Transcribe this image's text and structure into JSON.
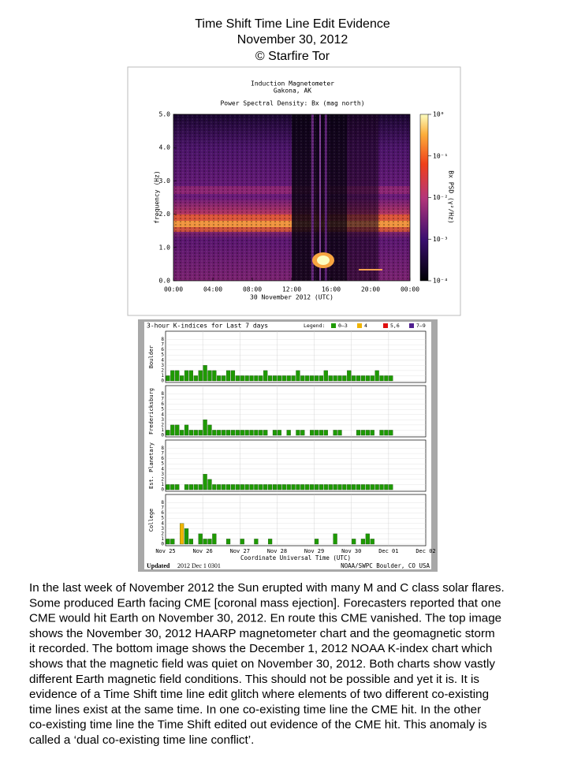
{
  "header": {
    "title": "Time Shift Time Line Edit Evidence",
    "date": "November 30, 2012",
    "credit": "© Starfire Tor"
  },
  "spectrogram": {
    "title": "Induction Magnetometer",
    "location": "Gakona, AK",
    "subtitle": "Power Spectral Density: Bx (mag north)",
    "y_label": "frequency (Hz)",
    "x_label": "30 November 2012 (UTC)",
    "ylim": [
      0,
      5
    ],
    "yticks": [
      {
        "value": 0,
        "label": "0.0"
      },
      {
        "value": 1,
        "label": "1.0"
      },
      {
        "value": 2,
        "label": "2.0"
      },
      {
        "value": 3,
        "label": "3.0"
      },
      {
        "value": 4,
        "label": "4.0"
      },
      {
        "value": 5,
        "label": "5.0"
      }
    ],
    "xticks": [
      "00:00",
      "04:00",
      "08:00",
      "12:00",
      "16:00",
      "20:00",
      "00:00"
    ],
    "colorbar_label": "Bx PSD (γ²/Hz)",
    "clim": [
      0.0001,
      1
    ],
    "colorbar_log": true,
    "colorbar_ticks": [
      {
        "value": 1,
        "label": "10⁰"
      },
      {
        "value": 0.1,
        "label": "10⁻¹"
      },
      {
        "value": 0.01,
        "label": "10⁻²"
      },
      {
        "value": 0.001,
        "label": "10⁻³"
      },
      {
        "value": 0.0001,
        "label": "10⁻⁴"
      }
    ]
  },
  "kindex": {
    "title": "3-hour K-indices for Last 7 days",
    "legend_title": "Legend:",
    "legend": [
      {
        "label": "0–3",
        "color": "#1e9a00"
      },
      {
        "label": "4",
        "color": "#f0b400"
      },
      {
        "label": "5,6",
        "color": "#e01010"
      },
      {
        "label": "7–9",
        "color": "#502090"
      }
    ],
    "ylim": [
      0,
      9
    ],
    "yticks": [
      0,
      1,
      2,
      3,
      4,
      5,
      6,
      7,
      8
    ],
    "panels": [
      {
        "name": "Boulder",
        "values": [
          1,
          2,
          2,
          1,
          2,
          2,
          1,
          2,
          3,
          2,
          2,
          1,
          1,
          2,
          2,
          1,
          1,
          1,
          1,
          1,
          1,
          2,
          1,
          1,
          1,
          1,
          1,
          1,
          2,
          1,
          1,
          1,
          1,
          1,
          2,
          1,
          1,
          1,
          1,
          2,
          1,
          1,
          1,
          1,
          1,
          2,
          1,
          1,
          1,
          null,
          null,
          null,
          null,
          null,
          null,
          null
        ]
      },
      {
        "name": "Fredericksburg",
        "values": [
          1,
          2,
          2,
          1,
          2,
          1,
          1,
          1,
          3,
          2,
          1,
          1,
          1,
          1,
          1,
          1,
          1,
          1,
          1,
          1,
          1,
          1,
          0,
          1,
          1,
          0,
          1,
          0,
          1,
          1,
          0,
          1,
          1,
          1,
          1,
          0,
          1,
          1,
          0,
          0,
          0,
          1,
          1,
          1,
          1,
          0,
          1,
          1,
          1,
          null,
          null,
          null,
          null,
          null,
          null,
          null
        ]
      },
      {
        "name": "Est. Planetary",
        "values": [
          1,
          1,
          1,
          0,
          1,
          1,
          1,
          1,
          3,
          2,
          1,
          1,
          1,
          1,
          1,
          1,
          1,
          1,
          1,
          1,
          1,
          1,
          1,
          1,
          1,
          1,
          1,
          1,
          1,
          1,
          1,
          1,
          1,
          1,
          1,
          1,
          1,
          1,
          1,
          1,
          1,
          1,
          1,
          1,
          1,
          1,
          1,
          1,
          1,
          null,
          null,
          null,
          null,
          null,
          null,
          null
        ]
      },
      {
        "name": "College",
        "values": [
          1,
          1,
          0,
          4,
          3,
          1,
          0,
          2,
          1,
          1,
          2,
          0,
          0,
          1,
          0,
          0,
          1,
          0,
          0,
          1,
          0,
          0,
          1,
          0,
          0,
          0,
          0,
          0,
          0,
          0,
          0,
          0,
          1,
          0,
          0,
          0,
          2,
          0,
          0,
          0,
          1,
          0,
          1,
          2,
          1,
          0,
          0,
          0,
          0,
          null,
          null,
          null,
          null,
          null,
          null,
          null
        ]
      }
    ],
    "xticks": [
      "Nov 25",
      "Nov 26",
      "Nov 27",
      "Nov 28",
      "Nov 29",
      "Nov 30",
      "Dec 01",
      "Dec 02"
    ],
    "x_label": "Coordinate Universal Time (UTC)",
    "updated_label": "Updated",
    "updated": "2012 Dec 1 0301",
    "source": "NOAA/SWPC Boulder, CO USA"
  },
  "body": {
    "lines": [
      "In the last week of November 2012 the Sun erupted with many M and C class solar flares.",
      "Some produced Earth facing CME [coronal mass ejection]. Forecasters reported that one",
      "CME would hit Earth on November 30, 2012. En route this CME vanished. The top image",
      "shows the November 30, 2012 HAARP magnetometer chart and the geomagnetic storm",
      "it recorded. The bottom image shows the December 1, 2012 NOAA K-index chart which",
      "shows that the magnetic field was quiet on November 30, 2012. Both charts show vastly",
      "different Earth magnetic field conditions. This should not be possible and yet it is. It is",
      "evidence of a Time Shift time line edit glitch where elements of two different co-existing",
      "time lines exist at the same time. In one co-existing time line the CME hit. In the other",
      "co-existing time line the Time Shift edited out evidence of the CME hit. This anomaly is",
      "called a ‘dual co-existing time line conflict’."
    ]
  }
}
